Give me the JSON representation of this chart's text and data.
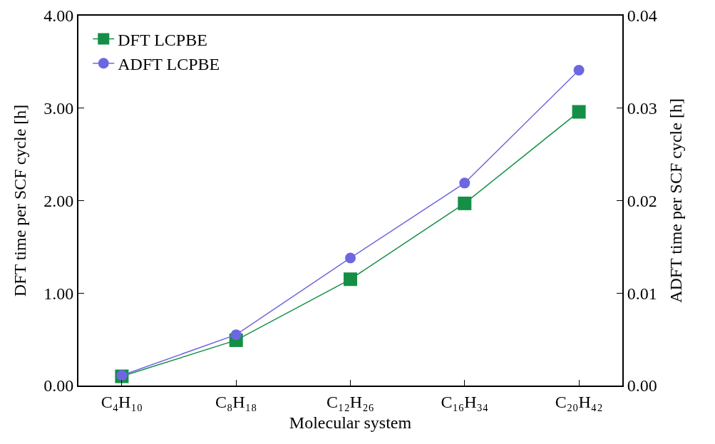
{
  "chart_data": {
    "type": "line",
    "xlabel": "Molecular system",
    "ylabel": "DFT time per SCF cycle [h]",
    "y2label": "ADFT time per SCF cycle [h]",
    "categories": [
      "C₄H₁₀",
      "C₈H₁₈",
      "C₁₂H₂₆",
      "C₁₆H₃₄",
      "C₂₀H₄₂"
    ],
    "series": [
      {
        "name": "DFT LCPBE",
        "color": "#148f45",
        "marker": "square",
        "values": [
          0.1,
          0.49,
          1.15,
          1.97,
          2.96
        ]
      },
      {
        "name": "ADFT LCPBE",
        "color": "#6c67e0",
        "marker": "circle",
        "axis": "y2",
        "values": [
          0.0011,
          0.0055,
          0.0138,
          0.0219,
          0.0341
        ]
      }
    ],
    "ylim": [
      0,
      4
    ],
    "yticks": [
      {
        "value": 0,
        "label": "0.00"
      },
      {
        "value": 1,
        "label": "1.00"
      },
      {
        "value": 2,
        "label": "2.00"
      },
      {
        "value": 3,
        "label": "3.00"
      },
      {
        "value": 4,
        "label": "4.00"
      }
    ],
    "y2lim": [
      0,
      0.04
    ],
    "y2ticks": [
      {
        "value": 0,
        "label": "0.00"
      },
      {
        "value": 0.01,
        "label": "0.01"
      },
      {
        "value": 0.02,
        "label": "0.02"
      },
      {
        "value": 0.03,
        "label": "0.03"
      },
      {
        "value": 0.04,
        "label": "0.04"
      }
    ],
    "grid": false,
    "legend": "top left",
    "line_style": "solid"
  }
}
